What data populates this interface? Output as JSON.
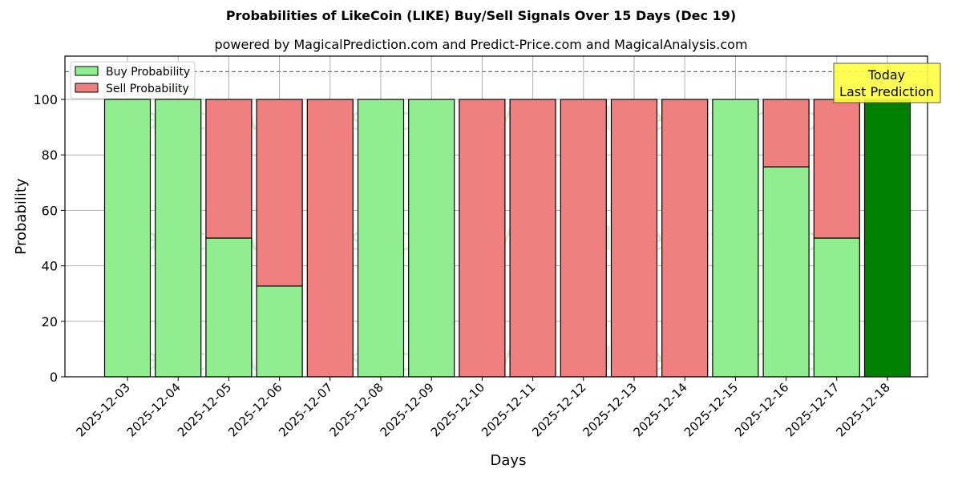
{
  "title": "Probabilities of LikeCoin (LIKE) Buy/Sell Signals Over 15 Days (Dec 19)",
  "subtitle": "powered by MagicalPrediction.com and Predict-Price.com and MagicalAnalysis.com",
  "legend": {
    "buy": "Buy Probability",
    "sell": "Sell Probability"
  },
  "annotation": {
    "line1": "Today",
    "line2": "Last Prediction"
  },
  "watermarks": [
    "MagicalAnalysis.com",
    "MagicalPrediction.com"
  ],
  "colors": {
    "buy": "#90ee90",
    "sell": "#f08080",
    "today": "#008000",
    "annotation_bg": "#ffff40"
  },
  "chart_data": {
    "type": "bar",
    "stacked": true,
    "title": "Probabilities of LikeCoin (LIKE) Buy/Sell Signals Over 15 Days (Dec 19)",
    "subtitle": "powered by MagicalPrediction.com and Predict-Price.com and MagicalAnalysis.com",
    "xlabel": "Days",
    "ylabel": "Probability",
    "ylim": [
      0,
      115
    ],
    "yticks": [
      0,
      20,
      40,
      60,
      80,
      100
    ],
    "reference_line": 110,
    "grid": true,
    "legend_position": "upper left",
    "categories": [
      "2025-12-03",
      "2025-12-04",
      "2025-12-05",
      "2025-12-06",
      "2025-12-07",
      "2025-12-08",
      "2025-12-09",
      "2025-12-10",
      "2025-12-11",
      "2025-12-12",
      "2025-12-13",
      "2025-12-14",
      "2025-12-15",
      "2025-12-16",
      "2025-12-17",
      "2025-12-18"
    ],
    "series": [
      {
        "name": "Buy Probability",
        "values": [
          100,
          100,
          50,
          32.7,
          0,
          100,
          100,
          0,
          0,
          0,
          0,
          0,
          100,
          75.7,
          50,
          100
        ]
      },
      {
        "name": "Sell Probability",
        "values": [
          0,
          0,
          50,
          67.3,
          100,
          0,
          0,
          100,
          100,
          100,
          100,
          100,
          0,
          24.3,
          50,
          0
        ]
      }
    ],
    "annotations": [
      {
        "text": "Today\nLast Prediction",
        "x": "2025-12-18"
      }
    ]
  }
}
